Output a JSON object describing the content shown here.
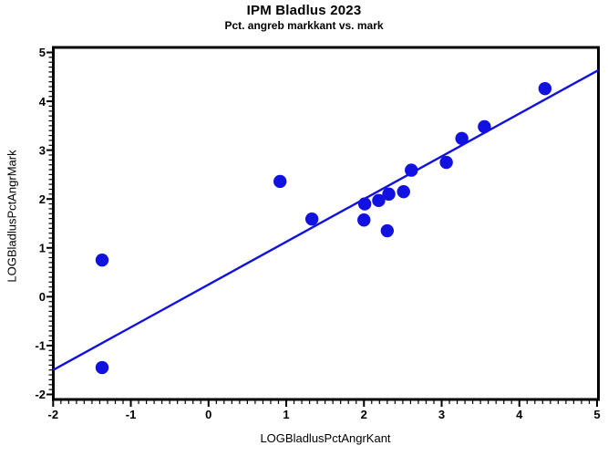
{
  "page": {
    "background": "#ffffff"
  },
  "chart_data": {
    "type": "scatter",
    "title": "IPM Bladlus 2023",
    "subtitle": "Pct. angreb markkant vs. mark",
    "xlabel": "LOGBladlusPctAngrKant",
    "ylabel": "LOGBladlusPctAngrMark",
    "xlim": [
      -2,
      5
    ],
    "ylim": [
      -2,
      5
    ],
    "x_ticks": [
      -2,
      -1,
      0,
      1,
      2,
      3,
      4,
      5
    ],
    "y_ticks": [
      -2,
      -1,
      0,
      1,
      2,
      3,
      4,
      5
    ],
    "minor_tick_step": 0.1,
    "grid": false,
    "legend": "none",
    "marker_color": "#1111e0",
    "line_color": "#1111e0",
    "axis_color": "#000000",
    "points": [
      [
        -1.37,
        0.75
      ],
      [
        -1.37,
        -1.45
      ],
      [
        0.92,
        2.36
      ],
      [
        1.33,
        1.59
      ],
      [
        2.01,
        1.9
      ],
      [
        2.19,
        1.97
      ],
      [
        2.32,
        2.1
      ],
      [
        2.51,
        2.15
      ],
      [
        2.0,
        1.57
      ],
      [
        2.3,
        1.35
      ],
      [
        2.61,
        2.59
      ],
      [
        3.06,
        2.75
      ],
      [
        3.26,
        3.24
      ],
      [
        3.55,
        3.48
      ],
      [
        4.33,
        4.26
      ]
    ],
    "regression_line": {
      "x1": -2.0,
      "y1": -1.5,
      "x2": 5.02,
      "y2": 4.64
    }
  }
}
